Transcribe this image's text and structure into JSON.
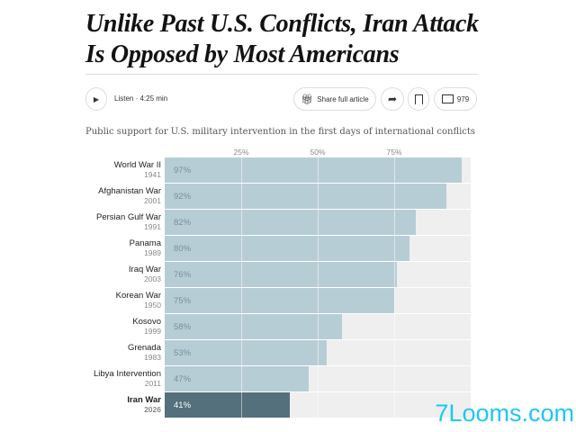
{
  "header": {
    "title": "Unlike Past U.S. Conflicts, Iran Attack Is Opposed by Most Americans"
  },
  "toolbar": {
    "listen": "Listen · 4:25 min",
    "share": "Share full article",
    "comments": "979"
  },
  "watermark": "7Looms.com",
  "chart_data": {
    "type": "bar",
    "orientation": "horizontal",
    "title": "Public support for U.S. military intervention in the first days of international conflicts",
    "xticks": [
      "25%",
      "50%",
      "75%"
    ],
    "xlim": [
      0,
      100
    ],
    "categories": [
      "World War II",
      "Afghanistan War",
      "Persian Gulf War",
      "Panama",
      "Iraq War",
      "Korean War",
      "Kosovo",
      "Grenada",
      "Libya Intervention",
      "Iran War"
    ],
    "years": [
      "1941",
      "2001",
      "1991",
      "1989",
      "2003",
      "1950",
      "1999",
      "1983",
      "2011",
      "2026"
    ],
    "values": [
      97,
      92,
      82,
      80,
      76,
      75,
      58,
      53,
      47,
      41
    ],
    "labels": [
      "97%",
      "92%",
      "82%",
      "80%",
      "76%",
      "75%",
      "58%",
      "53%",
      "47%",
      "41%"
    ],
    "colors": {
      "default": "#b7cdd6",
      "highlight": "#53707c"
    },
    "highlight_index": 9
  }
}
